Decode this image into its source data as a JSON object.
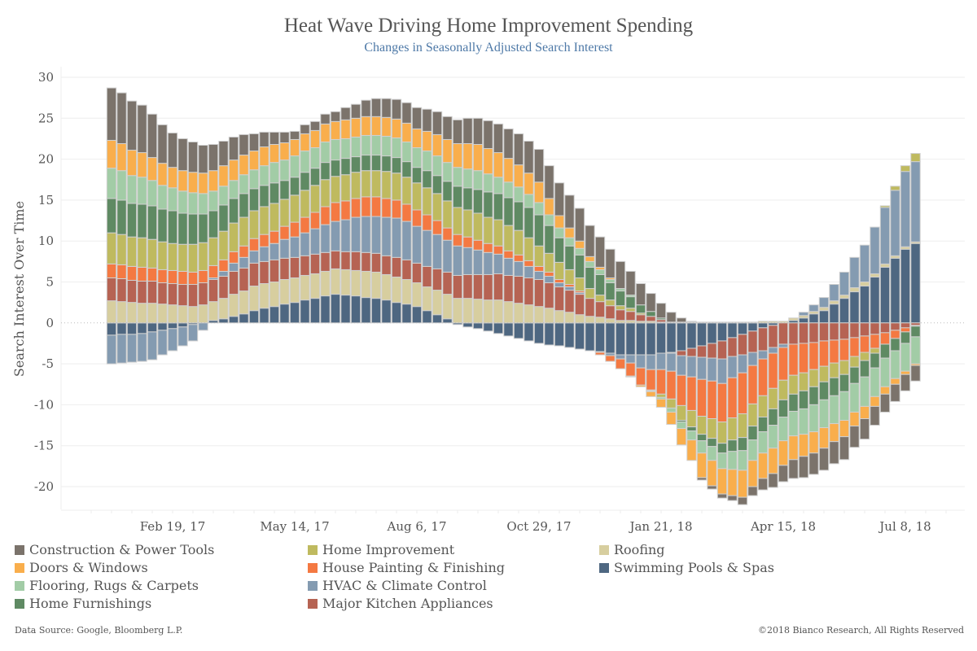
{
  "chart_data": {
    "type": "bar",
    "stacked": true,
    "title": "Heat Wave Driving Home Improvement Spending",
    "subtitle": "Changes in Seasonally Adjusted Search Interest",
    "xlabel": "",
    "ylabel": "Search Interest Over Time",
    "ylim": [
      -22.5,
      31
    ],
    "yticks": [
      30,
      25,
      20,
      15,
      10,
      5,
      0,
      -5,
      -10,
      -15,
      -20
    ],
    "x_start_week": 2,
    "x_end_week": 81,
    "x_week0_date": "Dec 25, 16",
    "x_frequency": "weekly",
    "xticks": [
      {
        "week": 8,
        "label": "Feb 19, 17"
      },
      {
        "week": 20,
        "label": "May 14, 17"
      },
      {
        "week": 32,
        "label": "Aug 6, 17"
      },
      {
        "week": 44,
        "label": "Oct 29, 17"
      },
      {
        "week": 56,
        "label": "Jan 21, 18"
      },
      {
        "week": 68,
        "label": "Apr 15, 18"
      },
      {
        "week": 80,
        "label": "Jul 8, 18"
      }
    ],
    "grid": true,
    "legend_position": "bottom",
    "stack_order": [
      "Swimming Pools & Spas",
      "Roofing",
      "Major Kitchen Appliances",
      "HVAC & Climate Control",
      "House Painting & Finishing",
      "Home Improvement",
      "Home Furnishings",
      "Flooring,  Rugs & Carpets",
      "Doors & Windows",
      "Construction & Power Tools"
    ],
    "series": [
      {
        "name": "Swimming Pools & Spas",
        "color": "#4e6781",
        "keyframes": [
          [
            2,
            -1.5
          ],
          [
            5,
            -1.3
          ],
          [
            8,
            -0.7
          ],
          [
            11,
            0
          ],
          [
            14,
            0.8
          ],
          [
            17,
            1.8
          ],
          [
            20,
            2.5
          ],
          [
            24,
            3.5
          ],
          [
            28,
            3.0
          ],
          [
            32,
            2.0
          ],
          [
            35,
            0.5
          ],
          [
            36,
            -0.2
          ],
          [
            40,
            -1.3
          ],
          [
            44,
            -2.5
          ],
          [
            48,
            -3.2
          ],
          [
            52,
            -3.9
          ],
          [
            55,
            -3.9
          ],
          [
            58,
            -3.4
          ],
          [
            62,
            -2.2
          ],
          [
            65,
            -1.0
          ],
          [
            67,
            -0.3
          ],
          [
            69,
            0.3
          ],
          [
            70,
            0.6
          ],
          [
            72,
            1.5
          ],
          [
            76,
            4.5
          ],
          [
            80,
            9.0
          ],
          [
            81,
            9.7
          ]
        ]
      },
      {
        "name": "Roofing",
        "color": "#d7ce9f",
        "keyframes": [
          [
            2,
            2.7
          ],
          [
            10,
            2.0
          ],
          [
            16,
            3.0
          ],
          [
            22,
            3.0
          ],
          [
            28,
            3.2
          ],
          [
            32,
            2.9
          ],
          [
            36,
            3.0
          ],
          [
            40,
            2.8
          ],
          [
            44,
            2.0
          ],
          [
            48,
            1.0
          ],
          [
            52,
            0.3
          ],
          [
            56,
            0.1
          ],
          [
            64,
            0.1
          ],
          [
            70,
            0.3
          ],
          [
            76,
            0.5
          ],
          [
            81,
            0.2
          ]
        ]
      },
      {
        "name": "Major Kitchen Appliances",
        "color": "#b66353",
        "keyframes": [
          [
            2,
            2.8
          ],
          [
            8,
            2.6
          ],
          [
            16,
            2.8
          ],
          [
            24,
            2.2
          ],
          [
            32,
            2.4
          ],
          [
            40,
            3.2
          ],
          [
            44,
            3.3
          ],
          [
            48,
            2.5
          ],
          [
            52,
            1.3
          ],
          [
            56,
            0.3
          ],
          [
            58,
            -0.6
          ],
          [
            62,
            -2.2
          ],
          [
            66,
            -2.8
          ],
          [
            70,
            -2.5
          ],
          [
            74,
            -2.0
          ],
          [
            78,
            -1.2
          ],
          [
            81,
            -0.3
          ]
        ]
      },
      {
        "name": "HVAC & Climate Control",
        "color": "#849bb1",
        "keyframes": [
          [
            2,
            -3.5
          ],
          [
            6,
            -3.4
          ],
          [
            10,
            -2.0
          ],
          [
            12,
            0.2
          ],
          [
            14,
            1.0
          ],
          [
            20,
            2.5
          ],
          [
            26,
            4.2
          ],
          [
            30,
            4.8
          ],
          [
            34,
            4.2
          ],
          [
            38,
            3.0
          ],
          [
            42,
            1.8
          ],
          [
            44,
            1.0
          ],
          [
            46,
            0.5
          ],
          [
            48,
            0.2
          ],
          [
            52,
            -0.5
          ],
          [
            54,
            -1.6
          ],
          [
            58,
            -2.4
          ],
          [
            62,
            -3.0
          ],
          [
            64,
            -2.2
          ],
          [
            66,
            -1.0
          ],
          [
            68,
            -0.4
          ],
          [
            70,
            0.4
          ],
          [
            72,
            1.2
          ],
          [
            76,
            4.5
          ],
          [
            80,
            9.2
          ],
          [
            81,
            9.8
          ]
        ]
      },
      {
        "name": "House Painting & Finishing",
        "color": "#f47942",
        "keyframes": [
          [
            2,
            1.7
          ],
          [
            8,
            1.6
          ],
          [
            14,
            1.4
          ],
          [
            18,
            1.5
          ],
          [
            24,
            2.3
          ],
          [
            28,
            2.4
          ],
          [
            32,
            2.0
          ],
          [
            36,
            1.4
          ],
          [
            40,
            1.0
          ],
          [
            44,
            0.6
          ],
          [
            48,
            0.2
          ],
          [
            50,
            -0.3
          ],
          [
            52,
            -1.2
          ],
          [
            56,
            -3.0
          ],
          [
            60,
            -4.5
          ],
          [
            64,
            -5.0
          ],
          [
            66,
            -4.5
          ],
          [
            70,
            -3.6
          ],
          [
            74,
            -2.6
          ],
          [
            78,
            -1.4
          ],
          [
            81,
            -0.1
          ]
        ]
      },
      {
        "name": "Home Improvement",
        "color": "#bfba5f",
        "keyframes": [
          [
            2,
            3.8
          ],
          [
            8,
            3.3
          ],
          [
            14,
            3.5
          ],
          [
            20,
            3.3
          ],
          [
            26,
            3.2
          ],
          [
            32,
            3.3
          ],
          [
            38,
            3.3
          ],
          [
            42,
            3.0
          ],
          [
            44,
            2.5
          ],
          [
            48,
            1.6
          ],
          [
            50,
            0.8
          ],
          [
            54,
            0.2
          ],
          [
            56,
            -0.4
          ],
          [
            58,
            -1.8
          ],
          [
            62,
            -2.6
          ],
          [
            64,
            -2.9
          ],
          [
            66,
            -2.6
          ],
          [
            70,
            -2.2
          ],
          [
            74,
            -1.7
          ],
          [
            77,
            -0.6
          ],
          [
            78,
            0.2
          ],
          [
            80,
            0.7
          ],
          [
            81,
            1.0
          ]
        ]
      },
      {
        "name": "Home Furnishings",
        "color": "#5f8a63",
        "keyframes": [
          [
            2,
            4.2
          ],
          [
            8,
            4.0
          ],
          [
            14,
            3.0
          ],
          [
            20,
            2.2
          ],
          [
            26,
            1.9
          ],
          [
            32,
            1.9
          ],
          [
            38,
            2.9
          ],
          [
            44,
            3.8
          ],
          [
            46,
            3.0
          ],
          [
            50,
            2.5
          ],
          [
            54,
            1.0
          ],
          [
            56,
            0.2
          ],
          [
            58,
            -0.2
          ],
          [
            60,
            -0.8
          ],
          [
            64,
            -1.6
          ],
          [
            68,
            -2.1
          ],
          [
            72,
            -2.2
          ],
          [
            76,
            -2.0
          ],
          [
            80,
            -1.4
          ],
          [
            81,
            -1.3
          ]
        ]
      },
      {
        "name": "Flooring,  Rugs & Carpets",
        "color": "#a2cca6",
        "keyframes": [
          [
            2,
            3.7
          ],
          [
            8,
            2.8
          ],
          [
            14,
            2.2
          ],
          [
            20,
            2.6
          ],
          [
            26,
            2.4
          ],
          [
            32,
            2.4
          ],
          [
            38,
            2.3
          ],
          [
            44,
            1.5
          ],
          [
            48,
            0.8
          ],
          [
            52,
            0.3
          ],
          [
            56,
            -0.2
          ],
          [
            58,
            -0.8
          ],
          [
            60,
            -1.5
          ],
          [
            64,
            -2.4
          ],
          [
            68,
            -2.9
          ],
          [
            72,
            -3.4
          ],
          [
            76,
            -3.6
          ],
          [
            80,
            -3.4
          ],
          [
            81,
            -3.3
          ]
        ]
      },
      {
        "name": "Doors & Windows",
        "color": "#f9ae4c",
        "keyframes": [
          [
            2,
            3.4
          ],
          [
            8,
            2.5
          ],
          [
            14,
            2.5
          ],
          [
            20,
            2.0
          ],
          [
            26,
            2.3
          ],
          [
            32,
            2.3
          ],
          [
            38,
            3.2
          ],
          [
            44,
            2.5
          ],
          [
            46,
            1.5
          ],
          [
            50,
            0.3
          ],
          [
            52,
            0
          ],
          [
            54,
            -0.2
          ],
          [
            56,
            -1.0
          ],
          [
            60,
            -3.0
          ],
          [
            64,
            -3.3
          ],
          [
            68,
            -3.0
          ],
          [
            72,
            -2.5
          ],
          [
            76,
            -1.5
          ],
          [
            80,
            -0.4
          ],
          [
            81,
            -0.2
          ]
        ]
      },
      {
        "name": "Construction & Power Tools",
        "color": "#7b736b",
        "keyframes": [
          [
            2,
            6.4
          ],
          [
            5,
            5.8
          ],
          [
            8,
            4.2
          ],
          [
            11,
            3.4
          ],
          [
            14,
            2.8
          ],
          [
            17,
            1.8
          ],
          [
            20,
            1.0
          ],
          [
            24,
            1.2
          ],
          [
            28,
            2.2
          ],
          [
            32,
            2.6
          ],
          [
            36,
            2.9
          ],
          [
            40,
            3.5
          ],
          [
            44,
            4.0
          ],
          [
            48,
            4.0
          ],
          [
            52,
            3.3
          ],
          [
            56,
            1.8
          ],
          [
            58,
            0.5
          ],
          [
            60,
            -0.3
          ],
          [
            63,
            -0.6
          ],
          [
            66,
            -1.4
          ],
          [
            70,
            -2.6
          ],
          [
            74,
            -2.8
          ],
          [
            78,
            -2.2
          ],
          [
            81,
            -1.9
          ]
        ]
      }
    ]
  },
  "legend": {
    "items": [
      {
        "label": "Construction & Power Tools",
        "color": "#7b736b"
      },
      {
        "label": "Doors & Windows",
        "color": "#f9ae4c"
      },
      {
        "label": "Flooring,  Rugs & Carpets",
        "color": "#a2cca6"
      },
      {
        "label": "Home Furnishings",
        "color": "#5f8a63"
      },
      {
        "label": "Home Improvement",
        "color": "#bfba5f"
      },
      {
        "label": "House Painting & Finishing",
        "color": "#f47942"
      },
      {
        "label": "HVAC & Climate Control",
        "color": "#849bb1"
      },
      {
        "label": "Major Kitchen Appliances",
        "color": "#b66353"
      },
      {
        "label": "Roofing",
        "color": "#d7ce9f"
      },
      {
        "label": "Swimming Pools & Spas",
        "color": "#4e6781"
      }
    ]
  },
  "footer": {
    "source": "Data Source: Google, Bloomberg L.P.",
    "copyright": "©2018 Bianco Research, All Rights Reserved"
  }
}
